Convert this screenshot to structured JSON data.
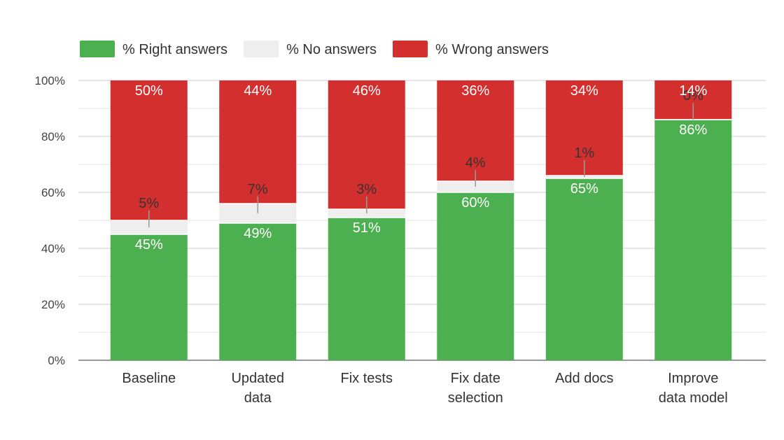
{
  "chart_data": {
    "type": "bar",
    "stacked": true,
    "categories": [
      [
        "Baseline"
      ],
      [
        "Updated",
        "data"
      ],
      [
        "Fix tests"
      ],
      [
        "Fix date",
        "selection"
      ],
      [
        "Add docs"
      ],
      [
        "Improve",
        "data model"
      ]
    ],
    "series": [
      {
        "name": "% Right answers",
        "color": "#4caf50",
        "values": [
          45,
          49,
          51,
          60,
          65,
          86
        ],
        "labels": [
          "45%",
          "49%",
          "51%",
          "60%",
          "65%",
          "86%"
        ]
      },
      {
        "name": "% No answers",
        "color": "#eeeeee",
        "values": [
          5,
          7,
          3,
          4,
          1,
          0
        ],
        "labels": [
          "5%",
          "7%",
          "3%",
          "4%",
          "1%",
          "0%"
        ]
      },
      {
        "name": "% Wrong answers",
        "color": "#d32f2f",
        "values": [
          50,
          44,
          46,
          36,
          34,
          14
        ],
        "labels": [
          "50%",
          "44%",
          "46%",
          "36%",
          "34%",
          "14%"
        ]
      }
    ],
    "ylim": [
      0,
      100
    ],
    "yticks": [
      0,
      20,
      40,
      60,
      80,
      100
    ],
    "ytick_labels": [
      "0%",
      "20%",
      "40%",
      "60%",
      "80%",
      "100%"
    ],
    "grid": true,
    "legend_position": "top-left",
    "title": "",
    "xlabel": "",
    "ylabel": ""
  }
}
